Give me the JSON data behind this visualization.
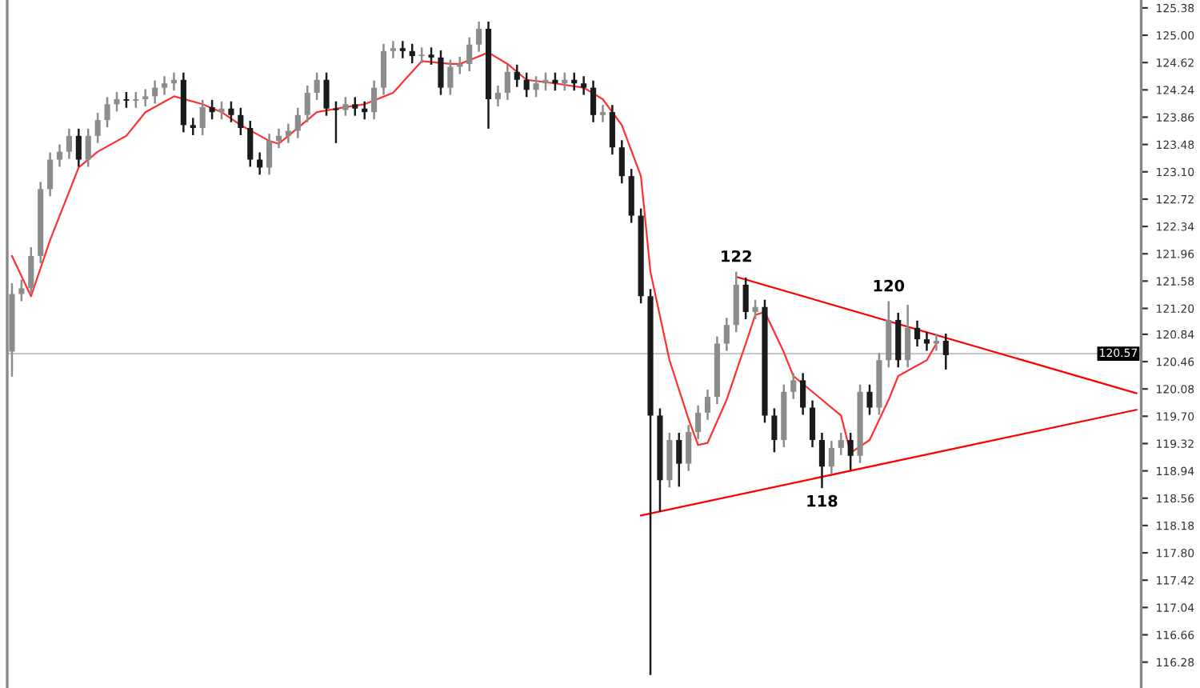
{
  "chart_data": {
    "type": "candlestick",
    "colors": [
      "#8c8c8c",
      "#8c8c8c",
      "#8c8c8c",
      "#8c8c8c",
      "#8c8c8c",
      "#8c8c8c",
      "#8c8c8c",
      "#1a1a1a",
      "#8c8c8c",
      "#8c8c8c",
      "#8c8c8c",
      "#8c8c8c",
      "#1a1a1a",
      "#8c8c8c",
      "#8c8c8c",
      "#8c8c8c",
      "#8c8c8c",
      "#8c8c8c",
      "#1a1a1a",
      "#1a1a1a",
      "#8c8c8c",
      "#1a1a1a",
      "#8c8c8c",
      "#1a1a1a",
      "#1a1a1a",
      "#1a1a1a",
      "#1a1a1a",
      "#8c8c8c",
      "#8c8c8c",
      "#8c8c8c",
      "#8c8c8c",
      "#8c8c8c",
      "#8c8c8c",
      "#1a1a1a",
      "#1a1a1a",
      "#8c8c8c",
      "#1a1a1a",
      "#1a1a1a",
      "#8c8c8c",
      "#8c8c8c",
      "#8c8c8c",
      "#1a1a1a",
      "#1a1a1a",
      "#8c8c8c",
      "#1a1a1a",
      "#1a1a1a",
      "#8c8c8c",
      "#8c8c8c",
      "#8c8c8c",
      "#8c8c8c",
      "#1a1a1a",
      "#8c8c8c",
      "#8c8c8c",
      "#1a1a1a",
      "#1a1a1a",
      "#8c8c8c",
      "#8c8c8c",
      "#1a1a1a",
      "#8c8c8c",
      "#1a1a1a",
      "#1a1a1a",
      "#1a1a1a",
      "#8c8c8c",
      "#1a1a1a",
      "#1a1a1a",
      "#1a1a1a",
      "#1a1a1a",
      "#1a1a1a",
      "#1a1a1a",
      "#8c8c8c",
      "#1a1a1a",
      "#8c8c8c",
      "#8c8c8c",
      "#8c8c8c",
      "#8c8c8c",
      "#8c8c8c",
      "#8c8c8c",
      "#1a1a1a",
      "#8c8c8c",
      "#1a1a1a",
      "#1a1a1a",
      "#8c8c8c",
      "#8c8c8c",
      "#1a1a1a",
      "#1a1a1a",
      "#1a1a1a",
      "#8c8c8c",
      "#8c8c8c",
      "#1a1a1a",
      "#8c8c8c",
      "#1a1a1a",
      "#8c8c8c",
      "#8c8c8c",
      "#1a1a1a",
      "#8c8c8c",
      "#1a1a1a",
      "#1a1a1a",
      "#8c8c8c",
      "#1a1a1a",
      null,
      null,
      null,
      null,
      null,
      null,
      null,
      null,
      null,
      null,
      null,
      null,
      null,
      null,
      null,
      null,
      null,
      null,
      null,
      null
    ],
    "categories": [
      null,
      null,
      null,
      null,
      null,
      null,
      null,
      null,
      null,
      null,
      null,
      null,
      null,
      null,
      null,
      null,
      null,
      null,
      null,
      null,
      null,
      null,
      null,
      null,
      null,
      null,
      null,
      null,
      null,
      null,
      null,
      null,
      null,
      null,
      null,
      null,
      null,
      null,
      null,
      null,
      null,
      null,
      null,
      null,
      null,
      null,
      null,
      null,
      null,
      null,
      null,
      null,
      null,
      null,
      null,
      null,
      null,
      null,
      null,
      null,
      null,
      null,
      null,
      null,
      null,
      null,
      null,
      null,
      null,
      null,
      null,
      null,
      null,
      null,
      null,
      null,
      null,
      null,
      null,
      null,
      null,
      null,
      null,
      null,
      null,
      null,
      null,
      null,
      null,
      null,
      null,
      null,
      null,
      null,
      null,
      null,
      null,
      null,
      null,
      null,
      null,
      null,
      null,
      null,
      null,
      null,
      null,
      null,
      null,
      null,
      null,
      null,
      null,
      null,
      null,
      null,
      null,
      null,
      null
    ],
    "ohlc": [
      [
        120.6,
        121.55,
        120.25,
        121.4
      ],
      [
        121.4,
        121.6,
        121.3,
        121.48
      ],
      [
        121.48,
        122.05,
        121.4,
        121.93
      ],
      [
        121.93,
        122.96,
        121.83,
        122.86
      ],
      [
        122.86,
        123.37,
        122.76,
        123.27
      ],
      [
        123.27,
        123.48,
        123.17,
        123.38
      ],
      [
        123.38,
        123.7,
        123.28,
        123.6
      ],
      [
        123.6,
        123.7,
        123.17,
        123.27
      ],
      [
        123.27,
        123.7,
        123.17,
        123.6
      ],
      [
        123.6,
        123.92,
        123.5,
        123.82
      ],
      [
        123.82,
        124.14,
        123.72,
        124.04
      ],
      [
        124.04,
        124.21,
        123.94,
        124.11
      ],
      [
        124.11,
        124.21,
        123.99,
        124.09
      ],
      [
        124.09,
        124.21,
        123.99,
        124.11
      ],
      [
        124.11,
        124.25,
        124.01,
        124.15
      ],
      [
        124.15,
        124.37,
        124.05,
        124.27
      ],
      [
        124.27,
        124.43,
        124.17,
        124.33
      ],
      [
        124.33,
        124.48,
        124.23,
        124.38
      ],
      [
        124.38,
        124.48,
        123.65,
        123.75
      ],
      [
        123.75,
        123.85,
        123.61,
        123.71
      ],
      [
        123.71,
        124.1,
        123.61,
        124.0
      ],
      [
        124.0,
        124.1,
        123.83,
        123.93
      ],
      [
        123.93,
        124.08,
        123.83,
        123.98
      ],
      [
        123.98,
        124.08,
        123.79,
        123.89
      ],
      [
        123.89,
        123.99,
        123.61,
        123.71
      ],
      [
        123.71,
        123.81,
        123.17,
        123.27
      ],
      [
        123.27,
        123.37,
        123.06,
        123.16
      ],
      [
        123.16,
        123.63,
        123.06,
        123.53
      ],
      [
        123.53,
        123.7,
        123.43,
        123.6
      ],
      [
        123.6,
        123.77,
        123.5,
        123.67
      ],
      [
        123.67,
        123.99,
        123.57,
        123.89
      ],
      [
        123.89,
        124.3,
        123.79,
        124.2
      ],
      [
        124.2,
        124.48,
        124.1,
        124.38
      ],
      [
        124.38,
        124.48,
        123.88,
        123.98
      ],
      [
        123.98,
        124.08,
        123.5,
        123.96
      ],
      [
        123.96,
        124.14,
        123.88,
        124.04
      ],
      [
        124.04,
        124.14,
        123.88,
        123.98
      ],
      [
        123.98,
        124.08,
        123.83,
        123.93
      ],
      [
        123.93,
        124.37,
        123.83,
        124.27
      ],
      [
        124.27,
        124.88,
        124.17,
        124.78
      ],
      [
        124.78,
        124.92,
        124.68,
        124.82
      ],
      [
        124.82,
        124.92,
        124.68,
        124.78
      ],
      [
        124.78,
        124.88,
        124.61,
        124.71
      ],
      [
        124.71,
        124.83,
        124.61,
        124.73
      ],
      [
        124.73,
        124.83,
        124.59,
        124.69
      ],
      [
        124.69,
        124.79,
        124.17,
        124.27
      ],
      [
        124.27,
        124.66,
        124.17,
        124.56
      ],
      [
        124.56,
        124.7,
        124.46,
        124.6
      ],
      [
        124.6,
        124.97,
        124.5,
        124.87
      ],
      [
        124.87,
        125.19,
        124.77,
        125.09
      ],
      [
        125.09,
        125.19,
        123.7,
        124.11
      ],
      [
        124.11,
        124.3,
        124.01,
        124.2
      ],
      [
        124.2,
        124.59,
        124.1,
        124.49
      ],
      [
        124.49,
        124.59,
        124.28,
        124.38
      ],
      [
        124.38,
        124.48,
        124.14,
        124.24
      ],
      [
        124.24,
        124.43,
        124.14,
        124.33
      ],
      [
        124.33,
        124.48,
        124.23,
        124.38
      ],
      [
        124.38,
        124.48,
        124.23,
        124.33
      ],
      [
        124.33,
        124.48,
        124.23,
        124.38
      ],
      [
        124.38,
        124.48,
        124.23,
        124.33
      ],
      [
        124.33,
        124.43,
        124.17,
        124.27
      ],
      [
        124.27,
        124.37,
        123.79,
        123.89
      ],
      [
        123.89,
        124.03,
        123.79,
        123.93
      ],
      [
        123.93,
        124.03,
        123.34,
        123.44
      ],
      [
        123.44,
        123.54,
        122.94,
        123.04
      ],
      [
        123.04,
        123.14,
        122.39,
        122.49
      ],
      [
        122.49,
        122.59,
        121.27,
        121.37
      ],
      [
        121.37,
        121.47,
        116.1,
        119.71
      ],
      [
        119.71,
        119.81,
        118.37,
        118.81
      ],
      [
        118.81,
        119.47,
        118.71,
        119.37
      ],
      [
        119.37,
        119.47,
        118.72,
        119.04
      ],
      [
        119.04,
        119.58,
        118.94,
        119.48
      ],
      [
        119.48,
        119.85,
        119.38,
        119.75
      ],
      [
        119.75,
        120.07,
        119.65,
        119.97
      ],
      [
        119.97,
        120.81,
        119.87,
        120.71
      ],
      [
        120.71,
        121.07,
        120.61,
        120.97
      ],
      [
        120.97,
        121.71,
        120.87,
        121.53
      ],
      [
        121.53,
        121.63,
        121.05,
        121.15
      ],
      [
        121.15,
        121.32,
        121.05,
        121.22
      ],
      [
        121.22,
        121.32,
        119.61,
        119.71
      ],
      [
        119.71,
        119.81,
        119.2,
        119.37
      ],
      [
        119.37,
        120.14,
        119.27,
        120.04
      ],
      [
        120.04,
        120.3,
        119.94,
        120.2
      ],
      [
        120.2,
        120.3,
        119.72,
        119.82
      ],
      [
        119.82,
        119.92,
        119.27,
        119.37
      ],
      [
        119.37,
        119.47,
        118.7,
        119.0
      ],
      [
        119.0,
        119.36,
        118.9,
        119.26
      ],
      [
        119.26,
        119.47,
        119.16,
        119.37
      ],
      [
        119.37,
        119.47,
        118.95,
        119.15
      ],
      [
        119.15,
        120.14,
        119.05,
        120.04
      ],
      [
        120.04,
        120.14,
        119.72,
        119.82
      ],
      [
        119.82,
        120.58,
        119.72,
        120.48
      ],
      [
        120.48,
        121.3,
        120.38,
        121.04
      ],
      [
        121.04,
        121.14,
        120.38,
        120.48
      ],
      [
        120.48,
        121.25,
        120.38,
        120.93
      ],
      [
        120.93,
        121.03,
        120.67,
        120.77
      ],
      [
        120.77,
        120.87,
        120.61,
        120.71
      ],
      [
        120.71,
        120.85,
        120.61,
        120.75
      ],
      [
        120.75,
        120.85,
        120.35,
        120.55
      ],
      null,
      null,
      null,
      null,
      null,
      null,
      null,
      null,
      null,
      null,
      null,
      null,
      null,
      null,
      null,
      null,
      null,
      null,
      null,
      null
    ],
    "series": [
      {
        "type": "line",
        "color": "#ff3030",
        "values": [
          121.93,
          null,
          121.37,
          null,
          122.15,
          null,
          null,
          123.16,
          null,
          123.38,
          null,
          null,
          123.6,
          null,
          123.93,
          null,
          null,
          124.15,
          null,
          null,
          124.04,
          null,
          123.93,
          null,
          123.75,
          null,
          null,
          123.53,
          123.49,
          null,
          123.71,
          null,
          123.93,
          null,
          null,
          124.0,
          null,
          124.04,
          null,
          null,
          124.2,
          null,
          null,
          124.64,
          null,
          null,
          124.6,
          124.6,
          null,
          null,
          124.76,
          null,
          124.6,
          null,
          124.38,
          null,
          null,
          124.33,
          null,
          null,
          124.27,
          null,
          124.11,
          null,
          123.75,
          null,
          123.04,
          121.71,
          null,
          120.48,
          null,
          119.66,
          119.3,
          119.33,
          null,
          119.93,
          null,
          120.71,
          121.11,
          121.15,
          null,
          120.59,
          120.26,
          null,
          120.04,
          null,
          null,
          119.71,
          119.19,
          null,
          119.37,
          null,
          119.93,
          120.26,
          null,
          null,
          120.48,
          120.71,
          null,
          null,
          null,
          null,
          null,
          null,
          null,
          null,
          null,
          null,
          null,
          null,
          null,
          null,
          null,
          null,
          null,
          null,
          null,
          null,
          null
        ]
      },
      {
        "type": "line",
        "color": "#ff0000",
        "values": [
          null,
          null,
          null,
          null,
          null,
          null,
          null,
          null,
          null,
          null,
          null,
          null,
          null,
          null,
          null,
          null,
          null,
          null,
          null,
          null,
          null,
          null,
          null,
          null,
          null,
          null,
          null,
          null,
          null,
          null,
          null,
          null,
          null,
          null,
          null,
          null,
          null,
          null,
          null,
          null,
          null,
          null,
          null,
          null,
          null,
          null,
          null,
          null,
          null,
          null,
          null,
          null,
          null,
          null,
          null,
          null,
          null,
          null,
          null,
          null,
          null,
          null,
          null,
          null,
          null,
          null,
          null,
          null,
          null,
          null,
          null,
          null,
          null,
          null,
          null,
          null,
          121.64,
          null,
          null,
          null,
          null,
          null,
          null,
          null,
          null,
          null,
          null,
          null,
          null,
          null,
          null,
          null,
          null,
          null,
          null,
          null,
          null,
          null,
          null,
          null,
          null,
          null,
          null,
          null,
          null,
          null,
          null,
          null,
          null,
          null,
          null,
          null,
          null,
          null,
          null,
          null,
          null,
          null,
          120.02
        ]
      },
      {
        "type": "line",
        "color": "#ff0000",
        "values": [
          null,
          null,
          null,
          null,
          null,
          null,
          null,
          null,
          null,
          null,
          null,
          null,
          null,
          null,
          null,
          null,
          null,
          null,
          null,
          null,
          null,
          null,
          null,
          null,
          null,
          null,
          null,
          null,
          null,
          null,
          null,
          null,
          null,
          null,
          null,
          null,
          null,
          null,
          null,
          null,
          null,
          null,
          null,
          null,
          null,
          null,
          null,
          null,
          null,
          null,
          null,
          null,
          null,
          null,
          null,
          null,
          null,
          null,
          null,
          null,
          null,
          null,
          null,
          null,
          null,
          null,
          118.32,
          null,
          null,
          null,
          null,
          null,
          null,
          null,
          null,
          null,
          null,
          null,
          null,
          null,
          null,
          null,
          null,
          null,
          null,
          null,
          null,
          null,
          null,
          null,
          null,
          null,
          null,
          null,
          null,
          null,
          null,
          null,
          null,
          null,
          null,
          null,
          null,
          null,
          null,
          null,
          null,
          null,
          null,
          null,
          null,
          null,
          null,
          null,
          null,
          null,
          null,
          null,
          119.79
        ]
      }
    ],
    "annotations": [
      {
        "text": "122",
        "y": 121.71
      },
      {
        "text": "120",
        "y": 121.3
      },
      {
        "text": "118",
        "y": 118.7
      }
    ],
    "ref_lines": [
      {
        "axis": "y",
        "value": 120.57,
        "label": "120.57",
        "color": "#c8c8c8"
      }
    ],
    "ylim": [
      115.92,
      125.49
    ],
    "yticks": [
      125.38,
      {
        "value": 125.0,
        "label": "125.00"
      },
      124.62,
      124.24,
      123.86,
      123.48,
      {
        "value": 123.1,
        "label": "123.10"
      },
      122.72,
      122.34,
      121.96,
      121.58,
      {
        "value": 121.2,
        "label": "121.20"
      },
      120.84,
      120.46,
      120.08,
      {
        "value": 119.7,
        "label": "119.70"
      },
      119.32,
      118.94,
      118.56,
      118.18,
      {
        "value": 117.8,
        "label": "117.80"
      },
      117.42,
      117.04,
      116.66,
      116.28
    ],
    "tick_labels": "y",
    "grid": false
  }
}
